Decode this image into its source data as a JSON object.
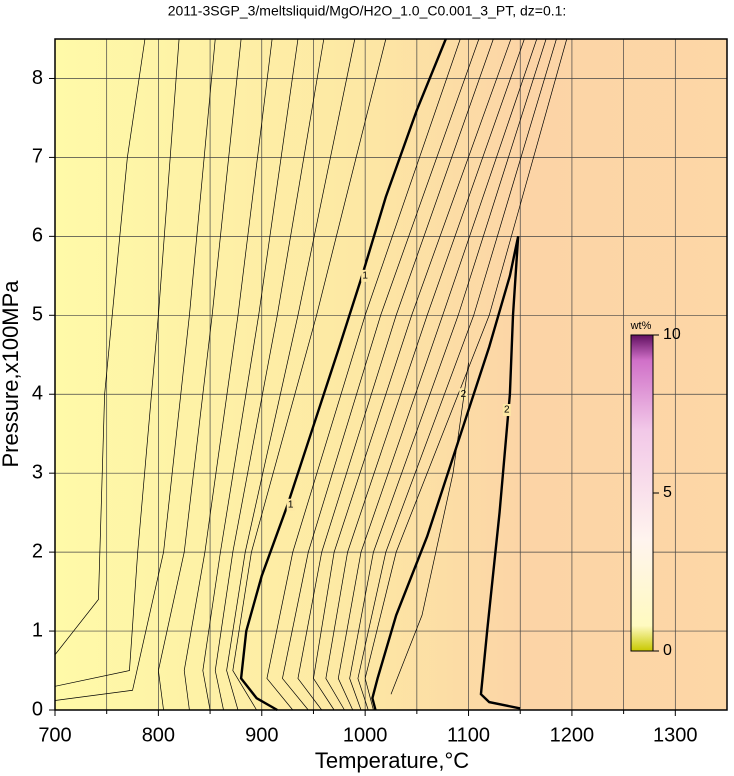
{
  "chart_data": {
    "type": "contour",
    "title": "2011-3SGP_3/meltsliquid/MgO/H2O_1.0_C0.001_3_PT, dz=0.1:",
    "xlabel": "Temperature,°C",
    "ylabel": "Pressure,x100MPa",
    "xlim": [
      700,
      1350
    ],
    "ylim": [
      0,
      8.5
    ],
    "xticks": [
      700,
      800,
      900,
      1000,
      1100,
      1200,
      1300
    ],
    "xgrid": [
      750,
      850,
      950,
      1050,
      1150,
      1250
    ],
    "yticks": [
      0,
      1,
      2,
      3,
      4,
      5,
      6,
      7,
      8
    ],
    "grid": true,
    "colorbar": {
      "label": "wt%",
      "lim": [
        0,
        10
      ],
      "ticks": [
        0,
        5,
        10
      ]
    },
    "contours": [
      {
        "level": 0.1,
        "T": [
          700,
          742,
          748,
          770,
          787
        ],
        "P": [
          0.7,
          1.4,
          4,
          7,
          8.5
        ]
      },
      {
        "level": 0.2,
        "T": [
          700,
          772,
          780,
          800,
          820
        ],
        "P": [
          0.3,
          0.5,
          2,
          5,
          8.5
        ]
      },
      {
        "level": 0.3,
        "T": [
          700,
          775,
          805,
          830,
          855
        ],
        "P": [
          0.12,
          0.25,
          2,
          5,
          8.5
        ]
      },
      {
        "level": 0.4,
        "T": [
          805,
          800,
          825,
          852,
          880
        ],
        "P": [
          0,
          0.5,
          2,
          5,
          8.5
        ]
      },
      {
        "level": 0.5,
        "T": [
          830,
          825,
          845,
          877,
          910
        ],
        "P": [
          0,
          0.5,
          2,
          5,
          8.5
        ]
      },
      {
        "level": 0.6,
        "T": [
          850,
          843,
          860,
          897,
          935
        ],
        "P": [
          0,
          0.5,
          2,
          5,
          8.5
        ]
      },
      {
        "level": 0.7,
        "T": [
          863,
          855,
          872,
          915,
          960
        ],
        "P": [
          0,
          0.5,
          2,
          5,
          8.5
        ]
      },
      {
        "level": 0.8,
        "T": [
          877,
          866,
          884,
          935,
          990
        ],
        "P": [
          0,
          0.5,
          2,
          5,
          8.5
        ]
      },
      {
        "level": 0.9,
        "T": [
          895,
          872,
          890,
          953,
          1020
        ],
        "P": [
          0,
          0.5,
          2,
          5,
          8.5
        ]
      },
      {
        "level": 1,
        "T": [
          915,
          895,
          880,
          885,
          900,
          925,
          950,
          975,
          997,
          1020,
          1050,
          1078
        ],
        "P": [
          0,
          0.15,
          0.4,
          1,
          1.7,
          2.6,
          3.6,
          4.6,
          5.5,
          6.5,
          7.6,
          8.5
        ],
        "label_at": [
          [
            928,
            2.6
          ],
          [
            1000,
            5.5
          ]
        ]
      },
      {
        "level": 1.1,
        "T": [
          930,
          905,
          930,
          1000,
          1092
        ],
        "P": [
          0,
          0.4,
          2,
          5,
          8.5
        ]
      },
      {
        "level": 1.2,
        "T": [
          945,
          920,
          945,
          1015,
          1110
        ],
        "P": [
          0,
          0.4,
          2,
          5,
          8.5
        ]
      },
      {
        "level": 1.3,
        "T": [
          958,
          935,
          958,
          1030,
          1124
        ],
        "P": [
          0,
          0.4,
          2,
          5,
          8.5
        ]
      },
      {
        "level": 1.4,
        "T": [
          970,
          950,
          970,
          1045,
          1141
        ],
        "P": [
          0,
          0.4,
          2,
          5,
          8.5
        ]
      },
      {
        "level": 1.5,
        "T": [
          980,
          962,
          983,
          1060,
          1154
        ],
        "P": [
          0,
          0.4,
          2,
          5,
          8.5
        ]
      },
      {
        "level": 1.6,
        "T": [
          988,
          974,
          996,
          1075,
          1166
        ],
        "P": [
          0,
          0.4,
          2,
          5,
          8.5
        ]
      },
      {
        "level": 1.7,
        "T": [
          996,
          985,
          1008,
          1090,
          1175
        ],
        "P": [
          0,
          0.4,
          2,
          5,
          8.5
        ]
      },
      {
        "level": 1.8,
        "T": [
          1003,
          993,
          1020,
          1105,
          1185
        ],
        "P": [
          0,
          0.4,
          2,
          5,
          8.5
        ]
      },
      {
        "level": 1.9,
        "T": [
          1008,
          1000,
          1030,
          1120,
          1195
        ],
        "P": [
          0,
          0.4,
          2,
          5,
          8.5
        ]
      },
      {
        "level": 2,
        "T": [
          1010,
          1007,
          1012,
          1030,
          1060,
          1090,
          1120,
          1140,
          1148,
          1143,
          1140,
          1130,
          1118,
          1112,
          1120,
          1150
        ],
        "P": [
          0,
          0.15,
          0.4,
          1.2,
          2.2,
          3.4,
          4.6,
          5.5,
          6,
          5,
          4,
          2.5,
          1,
          0.2,
          0.1,
          0.02
        ],
        "label_at": [
          [
            1095,
            4.0
          ],
          [
            1137,
            3.8
          ]
        ]
      },
      {
        "level": 2.1,
        "T": [
          1025,
          1055,
          1085,
          1100
        ],
        "P": [
          0.2,
          1.2,
          3,
          4.4
        ]
      }
    ]
  }
}
